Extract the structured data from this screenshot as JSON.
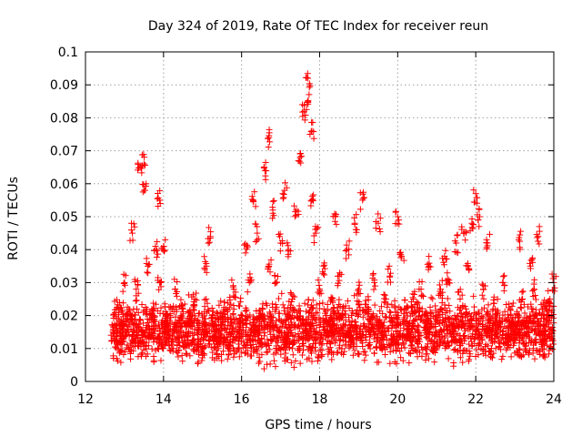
{
  "chart_data": {
    "type": "scatter",
    "title": "Day 324 of 2019, Rate Of TEC Index for receiver reun",
    "xlabel": "GPS time / hours",
    "ylabel": "ROTI / TECUs",
    "xlim": [
      12,
      24
    ],
    "ylim": [
      0,
      0.1
    ],
    "x_ticks": [
      12,
      14,
      16,
      18,
      20,
      22,
      24
    ],
    "x_tick_labels": [
      "12",
      "14",
      "16",
      "18",
      "20",
      "22",
      "24"
    ],
    "y_ticks": [
      0,
      0.01,
      0.02,
      0.03,
      0.04,
      0.05,
      0.06,
      0.07,
      0.08,
      0.09,
      0.1
    ],
    "y_tick_labels": [
      "0",
      "0.01",
      "0.02",
      "0.03",
      "0.04",
      "0.05",
      "0.06",
      "0.07",
      "0.08",
      "0.09",
      "0.1"
    ],
    "grid": true,
    "marker": "+",
    "color": "#ff0000",
    "series": [
      {
        "name": "ROTI",
        "x": [
          12.7,
          12.8,
          12.9,
          13.0,
          13.1,
          13.2,
          13.3,
          13.4,
          13.5,
          13.5,
          13.5,
          13.6,
          13.7,
          13.8,
          13.9,
          13.9,
          14.0,
          14.0,
          14.1,
          14.2,
          14.3,
          14.4,
          14.5,
          14.6,
          14.7,
          14.8,
          14.9,
          15.0,
          15.1,
          15.2,
          15.3,
          15.4,
          15.5,
          15.6,
          15.7,
          15.8,
          15.9,
          16.0,
          16.1,
          16.2,
          16.3,
          16.4,
          16.5,
          16.6,
          16.7,
          16.7,
          16.8,
          16.9,
          17.0,
          17.1,
          17.2,
          17.3,
          17.4,
          17.5,
          17.6,
          17.7,
          17.7,
          17.8,
          17.8,
          17.9,
          18.0,
          18.1,
          18.2,
          18.3,
          18.4,
          18.5,
          18.6,
          18.7,
          18.8,
          18.9,
          19.0,
          19.1,
          19.2,
          19.3,
          19.4,
          19.5,
          19.6,
          19.7,
          19.8,
          19.9,
          20.0,
          20.1,
          20.2,
          20.3,
          20.4,
          20.5,
          20.6,
          20.7,
          20.8,
          20.9,
          21.0,
          21.1,
          21.2,
          21.3,
          21.4,
          21.5,
          21.6,
          21.7,
          21.8,
          21.9,
          22.0,
          22.1,
          22.2,
          22.3,
          22.4,
          22.5,
          22.6,
          22.7,
          22.8,
          22.9,
          23.0,
          23.1,
          23.2,
          23.3,
          23.4,
          23.5,
          23.6,
          23.7,
          23.8,
          23.9,
          24.0
        ],
        "y": [
          0.015,
          0.022,
          0.014,
          0.03,
          0.018,
          0.045,
          0.028,
          0.065,
          0.058,
          0.066,
          0.012,
          0.035,
          0.022,
          0.04,
          0.055,
          0.03,
          0.041,
          0.013,
          0.02,
          0.012,
          0.028,
          0.015,
          0.022,
          0.011,
          0.018,
          0.025,
          0.012,
          0.008,
          0.035,
          0.044,
          0.015,
          0.01,
          0.018,
          0.022,
          0.012,
          0.028,
          0.015,
          0.02,
          0.039,
          0.03,
          0.055,
          0.045,
          0.02,
          0.064,
          0.074,
          0.035,
          0.052,
          0.03,
          0.042,
          0.058,
          0.04,
          0.025,
          0.052,
          0.068,
          0.082,
          0.092,
          0.085,
          0.076,
          0.055,
          0.045,
          0.028,
          0.035,
          0.018,
          0.025,
          0.05,
          0.032,
          0.02,
          0.04,
          0.015,
          0.048,
          0.028,
          0.055,
          0.022,
          0.018,
          0.03,
          0.048,
          0.015,
          0.025,
          0.032,
          0.012,
          0.05,
          0.038,
          0.022,
          0.015,
          0.025,
          0.012,
          0.028,
          0.018,
          0.035,
          0.012,
          0.02,
          0.028,
          0.038,
          0.03,
          0.015,
          0.042,
          0.025,
          0.045,
          0.035,
          0.048,
          0.057,
          0.05,
          0.028,
          0.042,
          0.015,
          0.022,
          0.018,
          0.03,
          0.012,
          0.02,
          0.015,
          0.043,
          0.025,
          0.018,
          0.035,
          0.028,
          0.044,
          0.012,
          0.022,
          0.025,
          0.03
        ]
      }
    ],
    "dense_band": {
      "x_range": [
        12.7,
        24.0
      ],
      "y_range": [
        0.003,
        0.028
      ]
    }
  }
}
